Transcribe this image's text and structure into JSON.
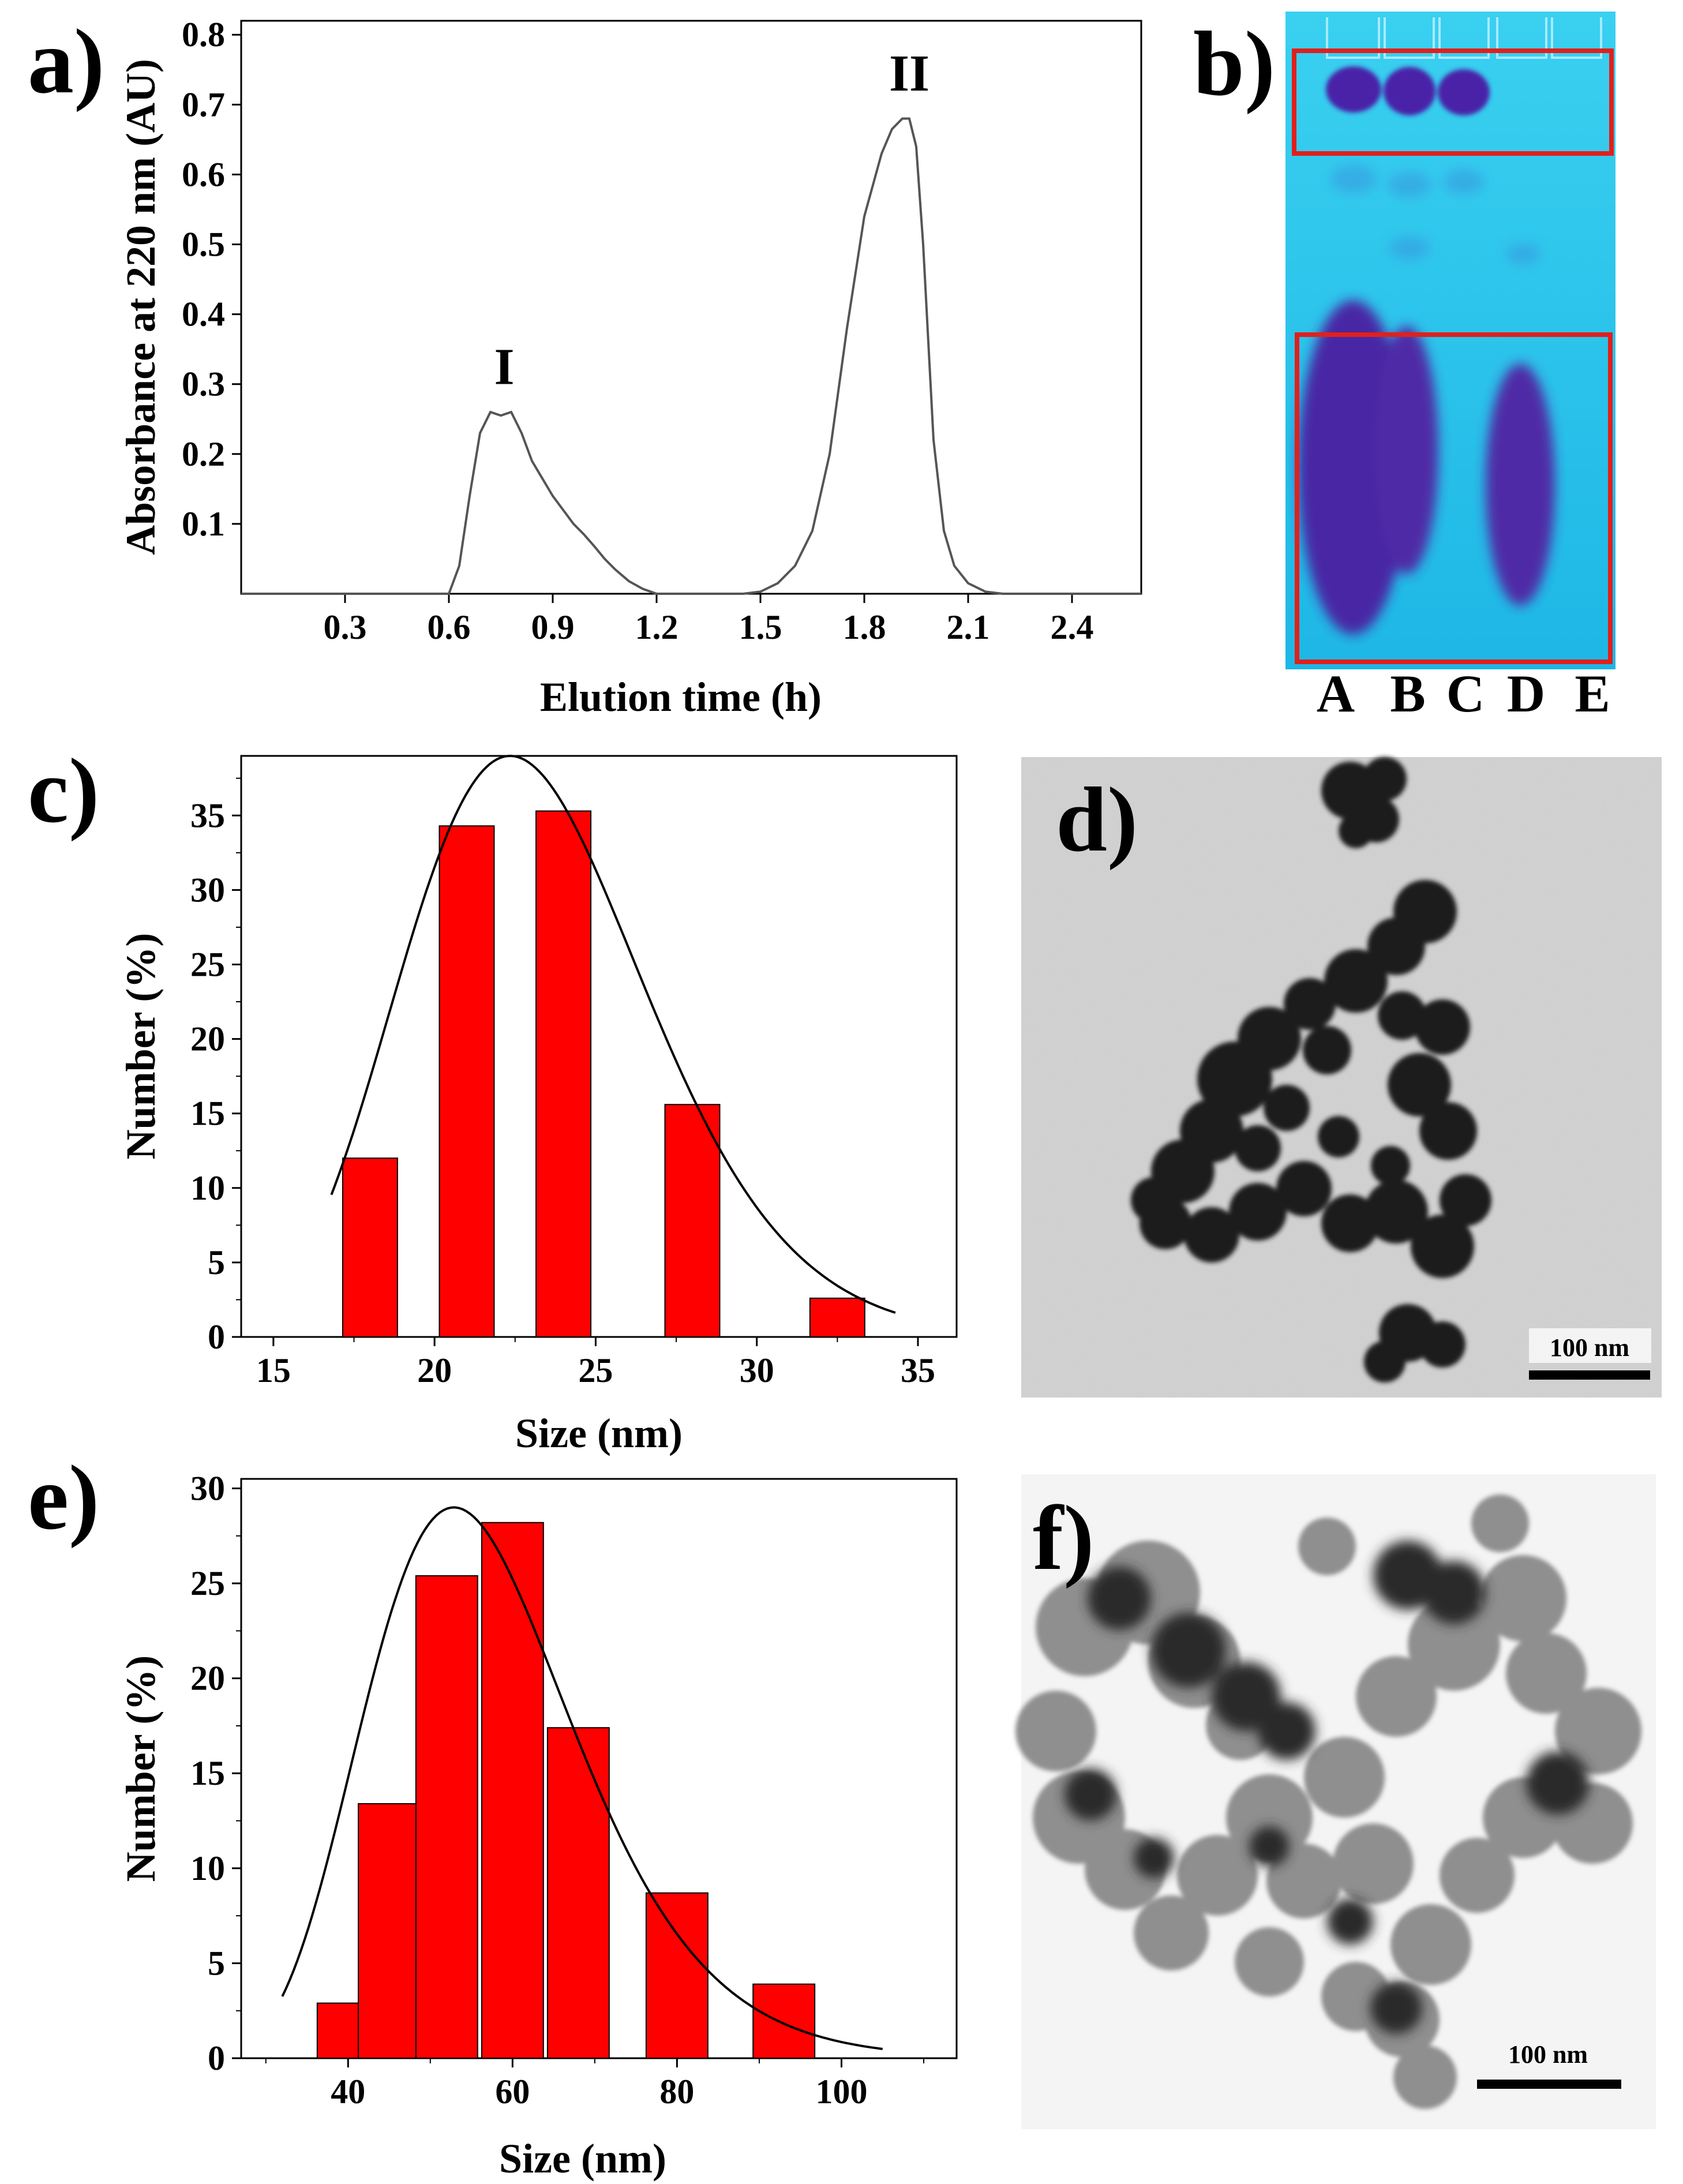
{
  "panel_labels": {
    "a": "a)",
    "b": "b)",
    "c": "c)",
    "d": "d)",
    "e": "e)",
    "f": "f)"
  },
  "chart_data": [
    {
      "panel": "a",
      "type": "line",
      "xlabel": "Elution time (h)",
      "ylabel": "Absorbance at 220 nm (AU)",
      "xlim": [
        0,
        2.6
      ],
      "ylim": [
        0,
        0.82
      ],
      "xticks": [
        0.3,
        0.6,
        0.9,
        1.2,
        1.5,
        1.8,
        2.1,
        2.4
      ],
      "yticks": [
        0.1,
        0.2,
        0.3,
        0.4,
        0.5,
        0.6,
        0.7,
        0.8
      ],
      "series": [
        {
          "x": [
            0.0,
            0.3,
            0.6,
            0.63,
            0.66,
            0.69,
            0.72,
            0.75,
            0.78,
            0.81,
            0.84,
            0.87,
            0.9,
            0.93,
            0.96,
            0.99,
            1.02,
            1.05,
            1.08,
            1.12,
            1.16,
            1.2,
            1.3,
            1.45,
            1.5,
            1.55,
            1.6,
            1.65,
            1.7,
            1.75,
            1.8,
            1.85,
            1.88,
            1.91,
            1.93,
            1.95,
            1.97,
            2.0,
            2.03,
            2.06,
            2.1,
            2.15,
            2.2,
            2.4,
            2.6
          ],
          "y": [
            0.0,
            0.0,
            0.0,
            0.04,
            0.14,
            0.23,
            0.26,
            0.255,
            0.26,
            0.23,
            0.19,
            0.165,
            0.14,
            0.12,
            0.1,
            0.085,
            0.068,
            0.05,
            0.035,
            0.018,
            0.007,
            0.0,
            0.0,
            0.0,
            0.003,
            0.015,
            0.04,
            0.09,
            0.2,
            0.38,
            0.54,
            0.63,
            0.665,
            0.68,
            0.68,
            0.64,
            0.5,
            0.22,
            0.09,
            0.04,
            0.015,
            0.003,
            0.0,
            0.0,
            0.0
          ]
        }
      ],
      "annotations": [
        {
          "text": "I",
          "x": 0.76,
          "y": 0.3
        },
        {
          "text": "II",
          "x": 1.93,
          "y": 0.72
        }
      ]
    },
    {
      "panel": "c",
      "type": "bar",
      "xlabel": "Size (nm)",
      "ylabel": "Number (%)",
      "xlim": [
        14,
        36.2
      ],
      "ylim": [
        0,
        39
      ],
      "xticks": [
        15,
        20,
        25,
        30,
        35
      ],
      "yticks": [
        0,
        5,
        10,
        15,
        20,
        25,
        30,
        35
      ],
      "bar_width": 1.7,
      "categories": [
        "18",
        "21",
        "24",
        "28",
        "32.5"
      ],
      "values": [
        12,
        34.3,
        35.3,
        15.6,
        2.6
      ],
      "fit_curve": {
        "type": "log-normal",
        "peak_x": 23,
        "peak_y": 39,
        "x_range": [
          16.8,
          34.3
        ]
      }
    },
    {
      "panel": "e",
      "type": "bar",
      "xlabel": "Size (nm)",
      "ylabel": "Number (%)",
      "xlim": [
        27,
        114
      ],
      "ylim": [
        0,
        30.5
      ],
      "xticks": [
        40,
        60,
        80,
        100
      ],
      "yticks": [
        0,
        5,
        10,
        15,
        20,
        25,
        30
      ],
      "bar_width": 7.5,
      "categories": [
        "40",
        "45",
        "52",
        "60",
        "68",
        "80",
        "93"
      ],
      "values": [
        2.9,
        13.4,
        25.4,
        28.2,
        17.4,
        8.7,
        3.9
      ],
      "fit_curve": {
        "type": "log-normal",
        "peak_x": 56,
        "peak_y": 29,
        "x_range": [
          32,
          105
        ]
      }
    }
  ],
  "gel": {
    "lanes": [
      "A",
      "B",
      "C",
      "D",
      "E"
    ],
    "colors": {
      "background": "#1fbde8",
      "band": "#4a2a9a",
      "box": "#e0201c"
    }
  },
  "tem_d": {
    "scale_bar": "100 nm"
  },
  "tem_f": {
    "scale_bar": "100 nm"
  }
}
